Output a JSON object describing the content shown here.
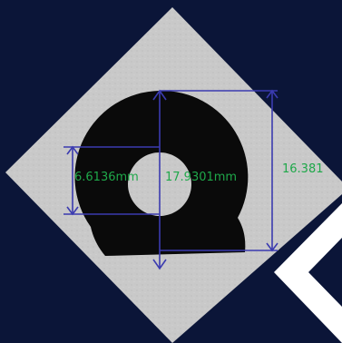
{
  "colors": {
    "background": "#0b1538",
    "plate": "#c8c8c8",
    "part": "#0a0a0a",
    "hole": "#c8c8c8",
    "dimension_line": "#3b3bb0",
    "dimension_text": "#1fa84a",
    "white_overlay": "#ffffff"
  },
  "measurements": {
    "hole_diameter": "6.6136mm",
    "outer_diameter": "17.9301mm",
    "height": "16.381"
  }
}
